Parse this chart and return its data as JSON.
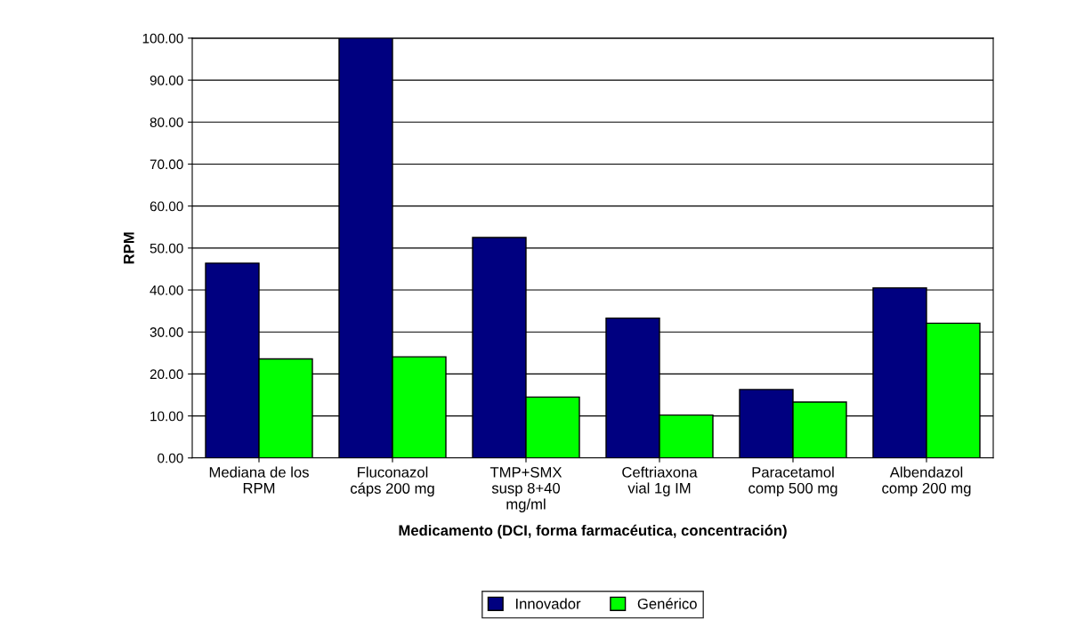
{
  "chart_data": {
    "type": "bar",
    "xlabel": "Medicamento (DCI, forma farmacéutica, concentración)",
    "ylabel": "RPM",
    "categories": [
      "Mediana de los\nRPM",
      "Fluconazol\ncáps 200 mg",
      "TMP+SMX\nsusp 8+40\nmg/ml",
      "Ceftriaxona\nvial 1g IM",
      "Paracetamol\ncomp 500 mg",
      "Albendazol\ncomp 200 mg"
    ],
    "series": [
      {
        "name": "Innovador",
        "color": "#000080",
        "values": [
          46.4,
          100,
          52.5,
          33.3,
          16.3,
          40.5
        ]
      },
      {
        "name": "Genérico",
        "color": "#00ff00",
        "values": [
          23.6,
          24.1,
          14.5,
          10.2,
          13.3,
          32.1
        ]
      }
    ],
    "ylim": [
      0,
      100
    ],
    "yticks": [
      {
        "value": 0,
        "label": "0.00"
      },
      {
        "value": 10,
        "label": "10.00"
      },
      {
        "value": 20,
        "label": "20.00"
      },
      {
        "value": 30,
        "label": "30.00"
      },
      {
        "value": 40,
        "label": "40.00"
      },
      {
        "value": 50,
        "label": "50.00"
      },
      {
        "value": 60,
        "label": "60.00"
      },
      {
        "value": 70,
        "label": "70.00"
      },
      {
        "value": 80,
        "label": "80.00"
      },
      {
        "value": 90,
        "label": "90.00"
      },
      {
        "value": 100,
        "label": "100.00"
      }
    ],
    "grid": "y",
    "legend": "bottom"
  }
}
